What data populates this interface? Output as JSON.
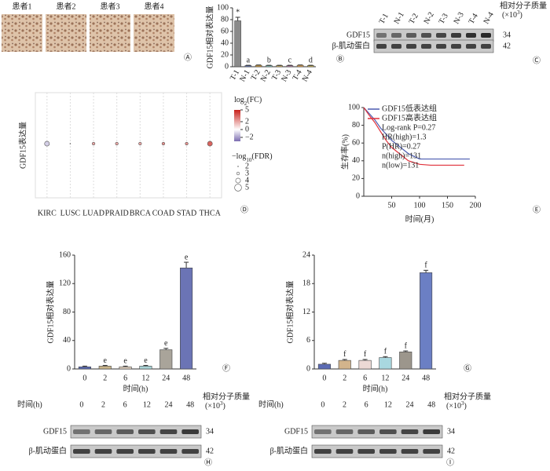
{
  "images": {
    "panel": "Ⓐ",
    "labels": [
      "患者1",
      "患者2",
      "患者3",
      "患者4"
    ]
  },
  "chart_data": [
    {
      "type": "bar",
      "panel": "Ⓑ",
      "y_label": "GDF15相对表达量",
      "categories": [
        "T-1",
        "N-1",
        "T-2",
        "N-2",
        "T-3",
        "N-3",
        "T-4",
        "N-4"
      ],
      "values": [
        78,
        2,
        2.5,
        2,
        2,
        2,
        2.5,
        2
      ],
      "errors": [
        6,
        0.5,
        0.5,
        0.5,
        0.5,
        0.5,
        0.5,
        0.5
      ],
      "colors": [
        "#8a8a8a",
        "#6b7fc4",
        "#d9a441",
        "#8fd3c8",
        "#e4c36a",
        "#c98bb5",
        "#f0b05a",
        "#d9c25a"
      ],
      "annotations": [
        "*",
        "a",
        null,
        "b",
        null,
        "c",
        null,
        "d"
      ],
      "ylim": [
        0,
        100
      ],
      "yticks": [
        0,
        20,
        40,
        60,
        80,
        100
      ]
    },
    {
      "type": "bubble",
      "panel": "Ⓓ",
      "y_label": "GDF15表达量",
      "categories": [
        "KIRC",
        "LUSC",
        "LUAD",
        "PRAID",
        "BRCA",
        "COAD",
        "STAD",
        "THCA"
      ],
      "fc": [
        -1,
        0.5,
        2,
        2,
        2,
        2.5,
        2.5,
        3.5
      ],
      "fdr": [
        4,
        2,
        3,
        3,
        3,
        3,
        3,
        4
      ],
      "fc_title": [
        "log",
        "2",
        "(FC)"
      ],
      "clim": [
        -3,
        5
      ],
      "cticks": [
        5,
        2,
        0,
        {
          "value": -2,
          "label": "−2"
        }
      ],
      "fdr_title": [
        "−log",
        "10",
        "(FDR)"
      ],
      "size_ticks": [
        2,
        3,
        4,
        5
      ]
    },
    {
      "type": "line",
      "panel": "Ⓔ",
      "x_label": "时间(月)",
      "y_label": "生存率(%)",
      "xlim": [
        0,
        200
      ],
      "xticks": [
        50,
        100,
        150,
        200
      ],
      "ylim": [
        0,
        100
      ],
      "yticks": [
        0,
        20,
        40,
        60,
        80,
        100
      ],
      "series": [
        {
          "name": "GDF15低表达组",
          "color": "#4a5bb0",
          "x": [
            0,
            10,
            20,
            30,
            40,
            50,
            60,
            70,
            80,
            90,
            100,
            120,
            150,
            190
          ],
          "values": [
            100,
            93,
            86,
            77,
            70,
            63,
            58,
            53,
            48,
            45,
            42,
            42,
            42,
            42
          ]
        },
        {
          "name": "GDF15高表达组",
          "color": "#e0303a",
          "x": [
            0,
            10,
            20,
            30,
            40,
            50,
            60,
            70,
            80,
            90,
            100,
            120,
            150,
            180
          ],
          "values": [
            100,
            91,
            83,
            73,
            63,
            55,
            50,
            45,
            40,
            38,
            36,
            35,
            35,
            35
          ]
        }
      ],
      "annotations": [
        "Log-rank P=0.27",
        "HR(high)=1.3",
        "P(HR)=0.27",
        "n(high)=131",
        "n(low)=131"
      ]
    },
    {
      "type": "bar",
      "panel": "Ⓕ",
      "y_label": "GDF15相对表达量",
      "x_label": "时间(h)",
      "categories": [
        "0",
        "2",
        "6",
        "12",
        "24",
        "48"
      ],
      "values": [
        3,
        4,
        3,
        4,
        27,
        142
      ],
      "errors": [
        1,
        1,
        1,
        1,
        2,
        8
      ],
      "colors": [
        "#5b6bb5",
        "#c9b48a",
        "#e2d2c2",
        "#a9d3d6",
        "#a9a49a",
        "#6b74b5"
      ],
      "annotations": [
        null,
        "e",
        "e",
        "e",
        "e",
        "e"
      ],
      "ylim": [
        0,
        160
      ],
      "yticks": [
        0,
        40,
        80,
        120,
        160
      ]
    },
    {
      "type": "bar",
      "panel": "Ⓖ",
      "y_label": "GDF15相对表达量",
      "x_label": "时间(h)",
      "categories": [
        "0",
        "2",
        "6",
        "12",
        "24",
        "48"
      ],
      "values": [
        1,
        1.8,
        1.8,
        2.4,
        3.6,
        20.3
      ],
      "errors": [
        0.2,
        0.2,
        0.2,
        0.2,
        0.2,
        0.5
      ],
      "colors": [
        "#5b6bb5",
        "#d2b48c",
        "#ecd9d5",
        "#a9d8e0",
        "#9c968c",
        "#6b7fc4"
      ],
      "annotations": [
        null,
        "f",
        "f",
        "f",
        "f",
        "f"
      ],
      "ylim": [
        0,
        24
      ],
      "yticks": [
        0,
        6,
        12,
        18,
        24
      ]
    }
  ],
  "blots": [
    {
      "panel": "Ⓒ",
      "lanes": [
        "T-1",
        "N-1",
        "T-2",
        "N-2",
        "T-3",
        "N-3",
        "T-4",
        "N-4"
      ],
      "rows": [
        "GDF15",
        "β-肌动蛋白"
      ],
      "mw": [
        34,
        42
      ],
      "mw_title": "相对分子质量",
      "mw_unit": [
        "(×10",
        "3",
        ")"
      ]
    },
    {
      "panel": "Ⓗ",
      "lane_title": "时间(h)",
      "lanes": [
        "0",
        "2",
        "6",
        "12",
        "24",
        "48"
      ],
      "rows": [
        "GDF15",
        "β-肌动蛋白"
      ],
      "mw": [
        34,
        42
      ],
      "mw_title": "相对分子质量",
      "mw_unit": [
        "(×10",
        "3",
        ")"
      ]
    },
    {
      "panel": "Ⓘ",
      "lane_title": "时间(h)",
      "lanes": [
        "0",
        "2",
        "6",
        "12",
        "24",
        "48"
      ],
      "rows": [
        "GDF15",
        "β-肌动蛋白"
      ],
      "mw": [
        34,
        42
      ],
      "mw_title": "相对分子质量",
      "mw_unit": [
        "(×10",
        "3",
        ")"
      ]
    }
  ]
}
